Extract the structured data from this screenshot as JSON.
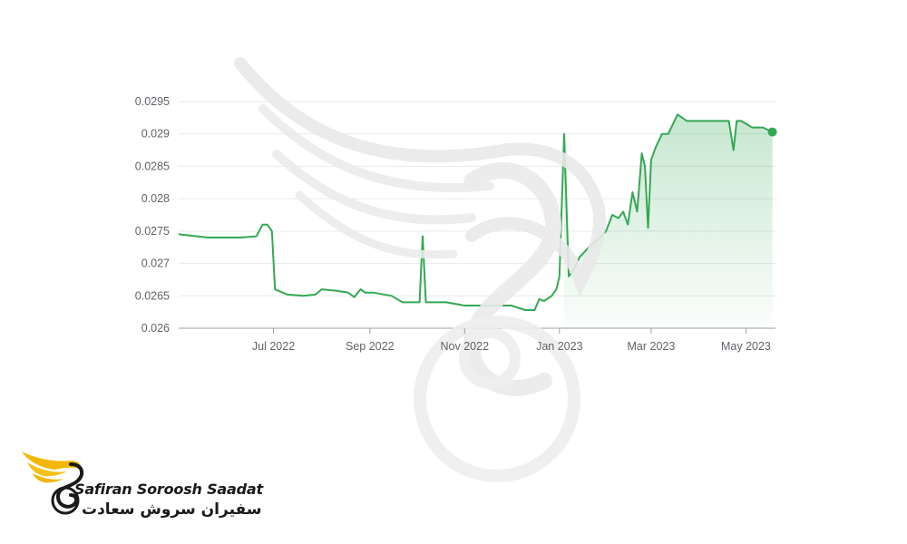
{
  "chart_data": {
    "type": "area",
    "title": "",
    "xlabel": "",
    "ylabel": "",
    "ylim": [
      0.026,
      0.0295
    ],
    "xlim": [
      "2022-05-01",
      "2023-05-20"
    ],
    "y_ticks": [
      "0.026",
      "0.0265",
      "0.027",
      "0.0275",
      "0.028",
      "0.0285",
      "0.029",
      "0.0295"
    ],
    "x_ticks": [
      {
        "label": "Jul 2022",
        "date": "2022-07-01"
      },
      {
        "label": "Sep 2022",
        "date": "2022-09-01"
      },
      {
        "label": "Nov 2022",
        "date": "2022-11-01"
      },
      {
        "label": "Jan 2023",
        "date": "2023-01-01"
      },
      {
        "label": "Mar 2023",
        "date": "2023-03-01"
      },
      {
        "label": "May 2023",
        "date": "2023-05-01"
      }
    ],
    "grid": true,
    "legend": "none",
    "colors": {
      "line": "#34a853",
      "fill": "#34a853",
      "grid": "#e8eaed",
      "axis": "#9aa0a6"
    },
    "series": [
      {
        "x": [
          "2022-05-01",
          "2022-05-20",
          "2022-06-10",
          "2022-06-20",
          "2022-06-24",
          "2022-06-27",
          "2022-06-30",
          "2022-07-02",
          "2022-07-10",
          "2022-07-20",
          "2022-07-28",
          "2022-08-01",
          "2022-08-10",
          "2022-08-18",
          "2022-08-22",
          "2022-08-26",
          "2022-08-29",
          "2022-09-03",
          "2022-09-15",
          "2022-09-22",
          "2022-09-28",
          "2022-10-03",
          "2022-10-05",
          "2022-10-07",
          "2022-10-09",
          "2022-10-20",
          "2022-11-01",
          "2022-11-15",
          "2022-12-01",
          "2022-12-10",
          "2022-12-16",
          "2022-12-19",
          "2022-12-22",
          "2022-12-27",
          "2022-12-30",
          "2023-01-01",
          "2023-01-04",
          "2023-01-07",
          "2023-01-10",
          "2023-01-14",
          "2023-01-18",
          "2023-01-22",
          "2023-01-27",
          "2023-01-31",
          "2023-02-04",
          "2023-02-08",
          "2023-02-11",
          "2023-02-14",
          "2023-02-17",
          "2023-02-20",
          "2023-02-23",
          "2023-02-25",
          "2023-02-27",
          "2023-03-01",
          "2023-03-04",
          "2023-03-08",
          "2023-03-12",
          "2023-03-18",
          "2023-03-24",
          "2023-03-30",
          "2023-04-05",
          "2023-04-12",
          "2023-04-20",
          "2023-04-23",
          "2023-04-25",
          "2023-04-28",
          "2023-05-05",
          "2023-05-12",
          "2023-05-18"
        ],
        "values": [
          0.02745,
          0.0274,
          0.0274,
          0.02742,
          0.0276,
          0.0276,
          0.0275,
          0.0266,
          0.02652,
          0.0265,
          0.02652,
          0.0266,
          0.02658,
          0.02655,
          0.02648,
          0.0266,
          0.02655,
          0.02655,
          0.0265,
          0.0264,
          0.0264,
          0.0264,
          0.02742,
          0.0264,
          0.0264,
          0.0264,
          0.02635,
          0.02635,
          0.02635,
          0.02628,
          0.02628,
          0.02645,
          0.02642,
          0.0265,
          0.0266,
          0.0268,
          0.029,
          0.0268,
          0.0269,
          0.0271,
          0.0272,
          0.0273,
          0.0274,
          0.0275,
          0.02775,
          0.0277,
          0.0278,
          0.0276,
          0.0281,
          0.0278,
          0.0287,
          0.0285,
          0.02755,
          0.0286,
          0.0288,
          0.029,
          0.029,
          0.0293,
          0.0292,
          0.0292,
          0.0292,
          0.0292,
          0.0292,
          0.02875,
          0.0292,
          0.0292,
          0.0291,
          0.0291,
          0.02903
        ]
      }
    ]
  },
  "logo": {
    "text_en": "Safiran Soroosh Saadat",
    "text_fa": "سفیران سروش سعادت"
  }
}
